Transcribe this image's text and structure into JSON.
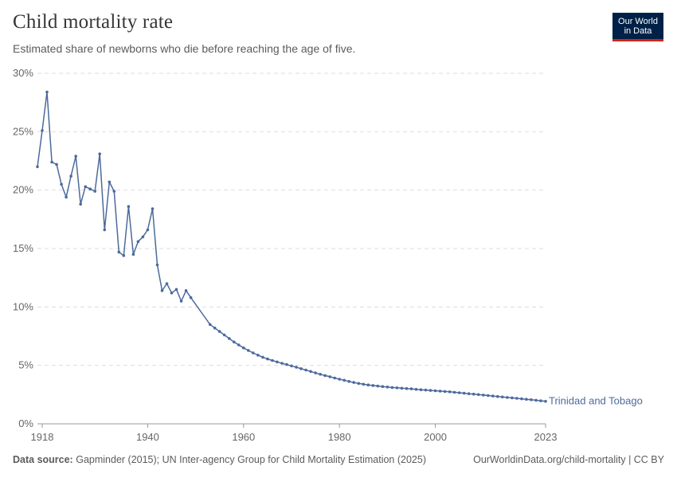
{
  "header": {
    "title": "Child mortality rate",
    "subtitle": "Estimated share of newborns who die before reaching the age of five."
  },
  "logo": {
    "line1": "Our World",
    "line2": "in Data"
  },
  "footer": {
    "source_label": "Data source:",
    "source_text": "Gapminder (2015); UN Inter-agency Group for Child Mortality Estimation (2025)",
    "link_text": "OurWorldinData.org/child-mortality | CC BY"
  },
  "colors": {
    "series": "#4c6a9c",
    "grid": "#dddddd",
    "text": "#666666",
    "logo_bg": "#002147",
    "logo_accent": "#ce261e"
  },
  "chart_data": {
    "type": "line",
    "title": "Child mortality rate",
    "xlabel": "",
    "ylabel": "",
    "xlim": [
      1917,
      2023
    ],
    "ylim": [
      0,
      30
    ],
    "x_ticks": [
      1918,
      1940,
      1960,
      1980,
      2000,
      2023
    ],
    "x_tick_labels": [
      "1918",
      "1940",
      "1960",
      "1980",
      "2000",
      "2023"
    ],
    "y_ticks": [
      0,
      5,
      10,
      15,
      20,
      25,
      30
    ],
    "y_tick_labels": [
      "0%",
      "5%",
      "10%",
      "15%",
      "20%",
      "25%",
      "30%"
    ],
    "grid": true,
    "legend": "end-label",
    "series": [
      {
        "name": "Trinidad and Tobago",
        "color": "#4c6a9c",
        "x": [
          1917,
          1918,
          1919,
          1920,
          1921,
          1922,
          1923,
          1924,
          1925,
          1926,
          1927,
          1928,
          1929,
          1930,
          1931,
          1932,
          1933,
          1934,
          1935,
          1936,
          1937,
          1938,
          1939,
          1940,
          1941,
          1942,
          1943,
          1944,
          1945,
          1946,
          1947,
          1948,
          1949,
          1953,
          1954,
          1955,
          1956,
          1957,
          1958,
          1959,
          1960,
          1961,
          1962,
          1963,
          1964,
          1965,
          1966,
          1967,
          1968,
          1969,
          1970,
          1971,
          1972,
          1973,
          1974,
          1975,
          1976,
          1977,
          1978,
          1979,
          1980,
          1981,
          1982,
          1983,
          1984,
          1985,
          1986,
          1987,
          1988,
          1989,
          1990,
          1991,
          1992,
          1993,
          1994,
          1995,
          1996,
          1997,
          1998,
          1999,
          2000,
          2001,
          2002,
          2003,
          2004,
          2005,
          2006,
          2007,
          2008,
          2009,
          2010,
          2011,
          2012,
          2013,
          2014,
          2015,
          2016,
          2017,
          2018,
          2019,
          2020,
          2021,
          2022,
          2023
        ],
        "y": [
          22.0,
          25.1,
          28.4,
          22.4,
          22.2,
          20.5,
          19.4,
          21.2,
          22.9,
          18.8,
          20.3,
          20.1,
          19.9,
          23.1,
          16.6,
          20.7,
          19.9,
          14.7,
          14.4,
          18.6,
          14.5,
          15.6,
          16.0,
          16.6,
          18.4,
          13.6,
          11.4,
          12.0,
          11.2,
          11.5,
          10.5,
          11.4,
          10.8,
          8.5,
          8.2,
          7.9,
          7.6,
          7.3,
          7.0,
          6.75,
          6.5,
          6.28,
          6.07,
          5.88,
          5.7,
          5.55,
          5.42,
          5.3,
          5.18,
          5.07,
          4.96,
          4.85,
          4.72,
          4.6,
          4.48,
          4.36,
          4.24,
          4.13,
          4.03,
          3.92,
          3.82,
          3.73,
          3.63,
          3.54,
          3.46,
          3.39,
          3.33,
          3.28,
          3.23,
          3.19,
          3.15,
          3.11,
          3.08,
          3.05,
          3.02,
          2.99,
          2.95,
          2.92,
          2.89,
          2.86,
          2.83,
          2.8,
          2.77,
          2.74,
          2.7,
          2.66,
          2.62,
          2.58,
          2.54,
          2.5,
          2.46,
          2.42,
          2.38,
          2.34,
          2.3,
          2.26,
          2.22,
          2.18,
          2.14,
          2.1,
          2.06,
          2.02,
          1.97,
          1.93
        ]
      }
    ]
  }
}
